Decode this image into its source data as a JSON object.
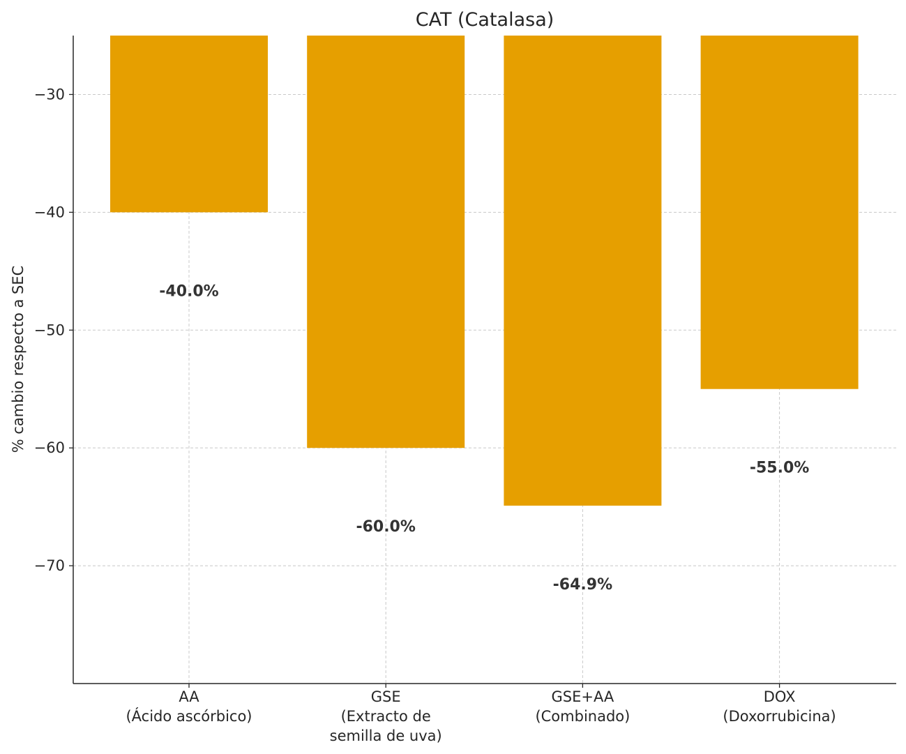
{
  "chart_data": {
    "type": "bar",
    "title": "CAT (Catalasa)",
    "xlabel": "",
    "ylabel": "% cambio respecto a SEC",
    "categories": [
      [
        "AA",
        "(Ácido ascórbico)"
      ],
      [
        "GSE",
        "(Extracto de",
        "semilla de uva)"
      ],
      [
        "GSE+AA",
        "(Combinado)"
      ],
      [
        "DOX",
        "(Doxorrubicina)"
      ]
    ],
    "values": [
      -40.0,
      -60.0,
      -64.9,
      -55.0
    ],
    "data_labels": [
      "-40.0%",
      "-60.0%",
      "-64.9%",
      "-55.0%"
    ],
    "ylim": [
      -80,
      -25
    ],
    "yticks": [
      -30,
      -40,
      -50,
      -60,
      -70
    ],
    "ytick_labels": [
      "−30",
      "−40",
      "−50",
      "−60",
      "−70"
    ],
    "grid": true,
    "bar_color": "#E69F00"
  }
}
